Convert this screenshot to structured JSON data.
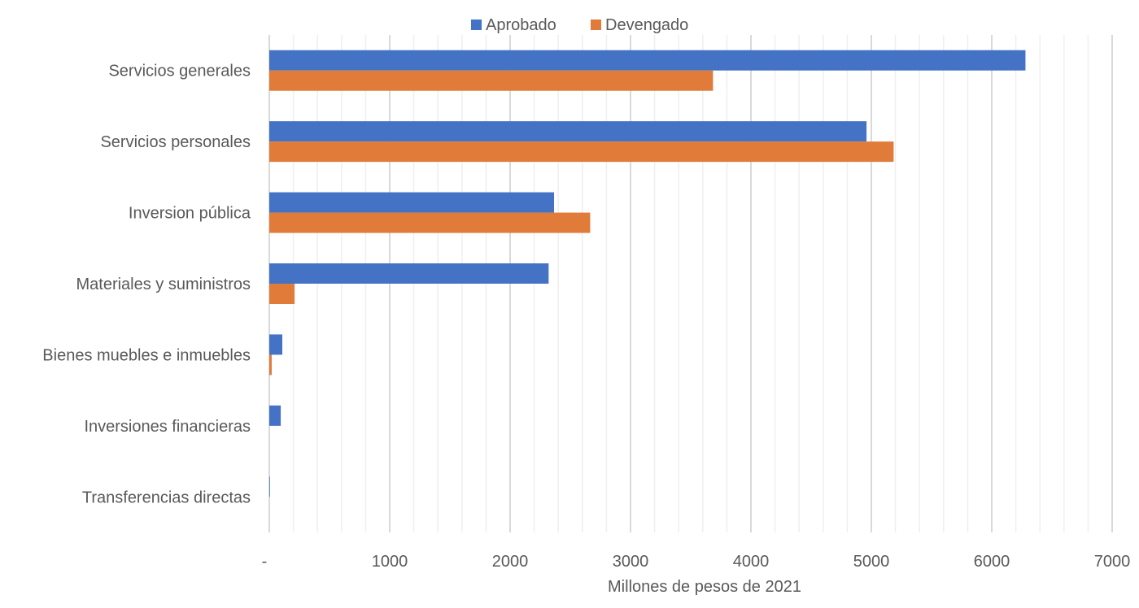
{
  "chart_data": {
    "type": "bar",
    "orientation": "horizontal",
    "categories": [
      "Servicios generales",
      "Servicios personales",
      "Inversion pública",
      "Materiales y suministros",
      "Bienes muebles e inmuebles",
      "Inversiones financieras",
      "Transferencias directas"
    ],
    "series": [
      {
        "name": "Aprobado",
        "color": "#4472C4",
        "values": [
          6280,
          4960,
          2365,
          2320,
          108,
          95,
          5
        ]
      },
      {
        "name": "Devengado",
        "color": "#E07B39",
        "values": [
          3685,
          5185,
          2665,
          210,
          20,
          0,
          0
        ]
      }
    ],
    "xlabel": "Millones de pesos de 2021",
    "ylabel": "",
    "xlim": [
      0,
      7000
    ],
    "xticks": [
      "-",
      "1000",
      "2000",
      "3000",
      "4000",
      "5000",
      "6000",
      "7000"
    ],
    "minor_grid_step": 200,
    "grid": true,
    "legend": "top"
  }
}
